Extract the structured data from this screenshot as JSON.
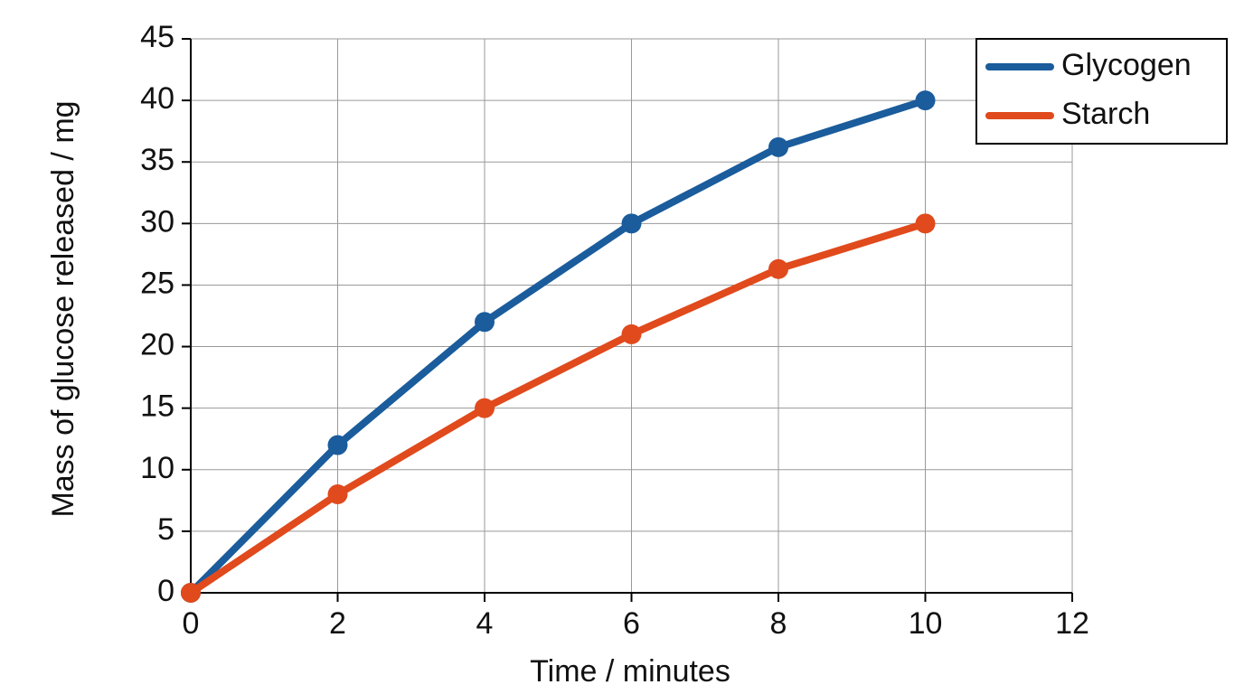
{
  "chart_data": {
    "type": "line",
    "x_label": "Time / minutes",
    "y_label": "Mass of glucose released / mg",
    "x": [
      0,
      2,
      4,
      6,
      8,
      10
    ],
    "series": [
      {
        "name": "Glycogen",
        "color": "#1a5c9c",
        "values": [
          0,
          12,
          22,
          30,
          36.2,
          40
        ]
      },
      {
        "name": "Starch",
        "color": "#e04a1c",
        "values": [
          0,
          8,
          15,
          21,
          26.3,
          30
        ]
      }
    ],
    "xlim": [
      0,
      12
    ],
    "xticks": [
      0,
      2,
      4,
      6,
      8,
      10,
      12
    ],
    "ylim": [
      0,
      45
    ],
    "yticks": [
      0,
      5,
      10,
      15,
      20,
      25,
      30,
      35,
      40,
      45
    ],
    "grid": true,
    "legend": "upper right"
  }
}
